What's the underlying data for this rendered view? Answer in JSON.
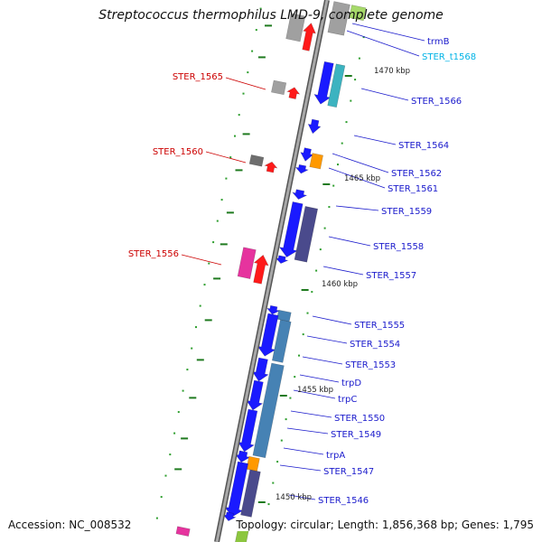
{
  "title": "Streptococcus thermophilus LMD-9, complete genome",
  "footer": {
    "accession": "Accession: NC_008532",
    "summary": "Topology: circular; Length: 1,856,368 bp; Genes: 1,795"
  },
  "colors": {
    "backbone": "#8c8c8c",
    "forward_gene": "#1a1aff",
    "reverse_gene_label": "#cc0000",
    "forward_label": "#1a1acc",
    "trna_label": "#00b3e6",
    "tick_dash": "#1f7a1f",
    "tick_dot": "#2e9e2e",
    "operon_blue": "#4682b4",
    "slate": "#4a4a8c",
    "teal": "#3cb3c0",
    "orange": "#ff9900",
    "magenta": "#e6339e",
    "red": "#ff1a1a",
    "grey": "#a0a0a0"
  },
  "position_markers": [
    {
      "label": "1470 kbp"
    },
    {
      "label": "1465 kbp"
    },
    {
      "label": "1460 kbp"
    },
    {
      "label": "1455 kbp"
    },
    {
      "label": "1450 kbp"
    }
  ],
  "forward_gene_labels": [
    {
      "label": "trmB",
      "type": "gene"
    },
    {
      "label": "STER_t1568",
      "type": "tRNA"
    },
    {
      "label": "STER_1566",
      "type": "gene"
    },
    {
      "label": "STER_1564",
      "type": "gene"
    },
    {
      "label": "STER_1562",
      "type": "gene"
    },
    {
      "label": "STER_1561",
      "type": "gene"
    },
    {
      "label": "STER_1559",
      "type": "gene"
    },
    {
      "label": "STER_1558",
      "type": "gene"
    },
    {
      "label": "STER_1557",
      "type": "gene"
    },
    {
      "label": "STER_1555",
      "type": "gene"
    },
    {
      "label": "STER_1554",
      "type": "gene"
    },
    {
      "label": "STER_1553",
      "type": "gene"
    },
    {
      "label": "trpD",
      "type": "gene"
    },
    {
      "label": "trpC",
      "type": "gene"
    },
    {
      "label": "STER_1550",
      "type": "gene"
    },
    {
      "label": "STER_1549",
      "type": "gene"
    },
    {
      "label": "trpA",
      "type": "gene"
    },
    {
      "label": "STER_1547",
      "type": "gene"
    },
    {
      "label": "STER_1546",
      "type": "gene"
    }
  ],
  "reverse_gene_labels": [
    {
      "label": "STER_1565"
    },
    {
      "label": "STER_1560"
    },
    {
      "label": "STER_1556"
    }
  ]
}
